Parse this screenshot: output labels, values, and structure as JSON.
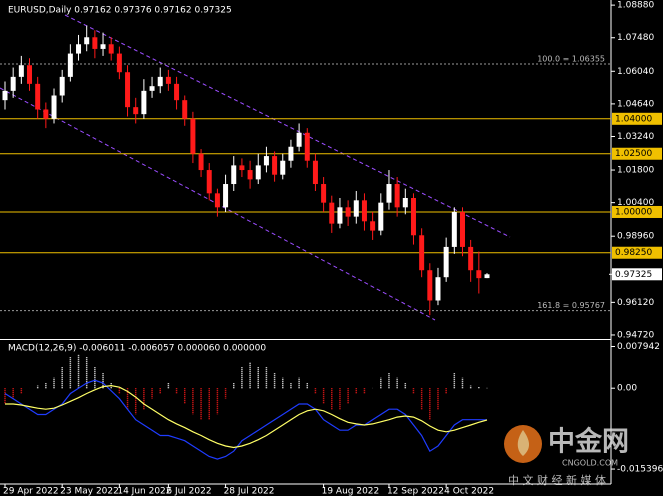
{
  "chart_data": [
    {
      "type": "candlestick",
      "title": "EURUSD,Daily  0.97162 0.97376 0.97162 0.97325",
      "categories": [
        "29 Apr 2022",
        null,
        null,
        null,
        null,
        null,
        null,
        "23 May 2022",
        null,
        null,
        null,
        null,
        null,
        null,
        "14 Jun 2022",
        null,
        null,
        null,
        null,
        null,
        "6 Jul 2022",
        null,
        null,
        null,
        null,
        null,
        null,
        "28 Jul 2022",
        null,
        null,
        null,
        null,
        null,
        null,
        null,
        null,
        null,
        null,
        null,
        "19 Aug 2022",
        null,
        null,
        null,
        null,
        null,
        null,
        null,
        "12 Sep 2022",
        null,
        null,
        null,
        null,
        null,
        null,
        "4 Oct 2022",
        null,
        null,
        null,
        null,
        null
      ],
      "open": [
        1.048,
        1.052,
        1.058,
        1.063,
        1.055,
        1.044,
        1.04,
        1.05,
        1.058,
        1.068,
        1.072,
        1.075,
        1.07,
        1.072,
        1.068,
        1.06,
        1.045,
        1.042,
        1.052,
        1.054,
        1.058,
        1.055,
        1.048,
        1.04,
        1.025,
        1.018,
        1.008,
        1.002,
        1.012,
        1.02,
        1.018,
        1.014,
        1.02,
        1.024,
        1.016,
        1.022,
        1.028,
        1.034,
        1.022,
        1.012,
        1.004,
        0.995,
        1.002,
        0.998,
        1.005,
        0.996,
        0.992,
        1.004,
        1.012,
        1.002,
        1.006,
        0.99,
        0.975,
        0.962,
        0.972,
        0.985,
        1.0,
        0.985,
        0.975,
        0.97162
      ],
      "high": [
        1.056,
        1.062,
        1.067,
        1.066,
        1.058,
        1.047,
        1.053,
        1.061,
        1.072,
        1.076,
        1.08,
        1.078,
        1.077,
        1.075,
        1.071,
        1.063,
        1.049,
        1.057,
        1.058,
        1.062,
        1.061,
        1.058,
        1.05,
        1.043,
        1.027,
        1.021,
        1.01,
        1.016,
        1.024,
        1.023,
        1.022,
        1.025,
        1.028,
        1.026,
        1.025,
        1.031,
        1.038,
        1.036,
        1.025,
        1.015,
        1.007,
        1.006,
        1.005,
        1.009,
        1.008,
        1.0,
        1.008,
        1.018,
        1.015,
        1.01,
        1.008,
        0.993,
        0.978,
        0.976,
        0.989,
        1.002,
        1.002,
        0.988,
        0.983,
        0.97376
      ],
      "low": [
        1.044,
        1.049,
        1.055,
        1.052,
        1.04,
        1.036,
        1.038,
        1.047,
        1.056,
        1.065,
        1.069,
        1.066,
        1.067,
        1.065,
        1.057,
        1.041,
        1.038,
        1.04,
        1.049,
        1.051,
        1.052,
        1.044,
        1.037,
        1.021,
        1.015,
        1.005,
        0.998,
        1.0,
        1.009,
        1.015,
        1.01,
        1.012,
        1.017,
        1.013,
        1.014,
        1.019,
        1.026,
        1.019,
        1.009,
        1.0,
        0.991,
        0.993,
        0.994,
        0.995,
        0.992,
        0.988,
        0.99,
        1.001,
        0.998,
        0.999,
        0.986,
        0.972,
        0.9557,
        0.96,
        0.97,
        0.982,
        0.981,
        0.97,
        0.965,
        0.97162
      ],
      "close": [
        1.052,
        1.058,
        1.063,
        1.055,
        1.044,
        1.04,
        1.05,
        1.058,
        1.068,
        1.072,
        1.075,
        1.07,
        1.072,
        1.068,
        1.06,
        1.045,
        1.042,
        1.052,
        1.054,
        1.058,
        1.055,
        1.048,
        1.04,
        1.025,
        1.018,
        1.008,
        1.002,
        1.012,
        1.02,
        1.018,
        1.014,
        1.02,
        1.024,
        1.016,
        1.022,
        1.028,
        1.034,
        1.022,
        1.012,
        1.004,
        0.995,
        1.002,
        0.998,
        1.005,
        0.996,
        0.992,
        1.004,
        1.012,
        1.002,
        1.006,
        0.99,
        0.975,
        0.962,
        0.972,
        0.985,
        1.0,
        0.985,
        0.975,
        0.9716,
        0.97325
      ],
      "up_color": "#ffffff",
      "down_color": "#ff1a1a",
      "ylim": [
        0.9459,
        1.091
      ],
      "yticks": [
        {
          "value": 1.0888,
          "label": "1.08880"
        },
        {
          "value": 1.0748,
          "label": "1.07480"
        },
        {
          "value": 1.0604,
          "label": "1.06040"
        },
        {
          "value": 1.0464,
          "label": "1.04640"
        },
        {
          "value": 1.0324,
          "label": "1.03240"
        },
        {
          "value": 1.018,
          "label": "1.01800"
        },
        {
          "value": 1.004,
          "label": "1.00400"
        },
        {
          "value": 0.9896,
          "label": "0.98960"
        },
        {
          "value": 0.9612,
          "label": "0.96120"
        },
        {
          "value": 0.9472,
          "label": "0.94720"
        }
      ],
      "levels": [
        {
          "value": 1.04,
          "label": "1.04000"
        },
        {
          "value": 1.025,
          "label": "1.02500"
        },
        {
          "value": 1.0,
          "label": "1.00000"
        },
        {
          "value": 0.9825,
          "label": "0.98250"
        }
      ],
      "level_color": "#f0c000",
      "fib_levels": [
        {
          "value": 1.06355,
          "label": "100.0 = 1.06355"
        },
        {
          "value": 0.95767,
          "label": "161.8 = 0.95767"
        }
      ],
      "last_price": {
        "value": 0.97325,
        "label": "0.97325"
      }
    },
    {
      "type": "macd",
      "title": "MACD(12,26,9) -0.006011 -0.006057 0.000060 0.000000",
      "histogram": [
        -0.003,
        -0.002,
        -0.001,
        0,
        0.0005,
        0.001,
        0.002,
        0.004,
        0.006,
        0.0065,
        0.006,
        0.004,
        0.003,
        0.001,
        -0.001,
        -0.004,
        -0.005,
        -0.004,
        -0.002,
        -0.001,
        0.001,
        -0.001,
        -0.003,
        -0.005,
        -0.006,
        -0.006,
        -0.005,
        -0.002,
        0.001,
        0.004,
        0.005,
        0.004,
        0.004,
        0.003,
        0.002,
        0.001,
        0.002,
        0.001,
        -0.001,
        -0.003,
        -0.004,
        -0.004,
        -0.003,
        -0.001,
        -0.001,
        0,
        0.002,
        0.003,
        0.002,
        0.001,
        -0.001,
        -0.004,
        -0.006,
        -0.004,
        -0.001,
        0.003,
        0.002,
        0.0005,
        0.0002,
        6e-05
      ],
      "macd": [
        -0.001,
        -0.002,
        -0.003,
        -0.004,
        -0.005,
        -0.005,
        -0.004,
        -0.003,
        -0.001,
        0,
        0.001,
        0.0015,
        0.001,
        -0.0005,
        -0.002,
        -0.004,
        -0.006,
        -0.007,
        -0.008,
        -0.009,
        -0.009,
        -0.0095,
        -0.01,
        -0.011,
        -0.012,
        -0.013,
        -0.0135,
        -0.013,
        -0.012,
        -0.01,
        -0.009,
        -0.008,
        -0.007,
        -0.006,
        -0.005,
        -0.004,
        -0.003,
        -0.003,
        -0.004,
        -0.006,
        -0.007,
        -0.008,
        -0.008,
        -0.007,
        -0.007,
        -0.006,
        -0.005,
        -0.004,
        -0.004,
        -0.005,
        -0.007,
        -0.009,
        -0.012,
        -0.011,
        -0.009,
        -0.007,
        -0.006,
        -0.006,
        -0.006,
        -0.006011
      ],
      "signal": [
        -0.003,
        -0.003,
        -0.0032,
        -0.0035,
        -0.0038,
        -0.004,
        -0.0038,
        -0.0032,
        -0.0025,
        -0.0018,
        -0.001,
        -0.0003,
        0.0003,
        0.0005,
        0.0002,
        -0.0006,
        -0.0017,
        -0.003,
        -0.004,
        -0.005,
        -0.006,
        -0.0068,
        -0.0075,
        -0.0083,
        -0.009,
        -0.0098,
        -0.0105,
        -0.011,
        -0.0113,
        -0.011,
        -0.0105,
        -0.0098,
        -0.009,
        -0.008,
        -0.007,
        -0.006,
        -0.005,
        -0.0043,
        -0.004,
        -0.0043,
        -0.005,
        -0.0058,
        -0.0065,
        -0.0068,
        -0.007,
        -0.0068,
        -0.0064,
        -0.006,
        -0.0055,
        -0.0053,
        -0.0055,
        -0.0062,
        -0.0072,
        -0.008,
        -0.0083,
        -0.008,
        -0.0075,
        -0.007,
        -0.0065,
        -0.006057
      ],
      "histogram_up_color": "#ffffff",
      "histogram_down_color": "#ff1a1a",
      "macd_color": "#1f3cff",
      "signal_color": "#ffff66",
      "ylim": [
        -0.0171,
        0.0088
      ],
      "yticks": [
        0.007942,
        {
          "value": 0,
          "label": "0.00"
        },
        -0.015396
      ]
    }
  ],
  "watermark": {
    "brand": "中金网",
    "site": "CNGOLD.COM",
    "tagline": "中 文 财 经 新 媒 体"
  }
}
